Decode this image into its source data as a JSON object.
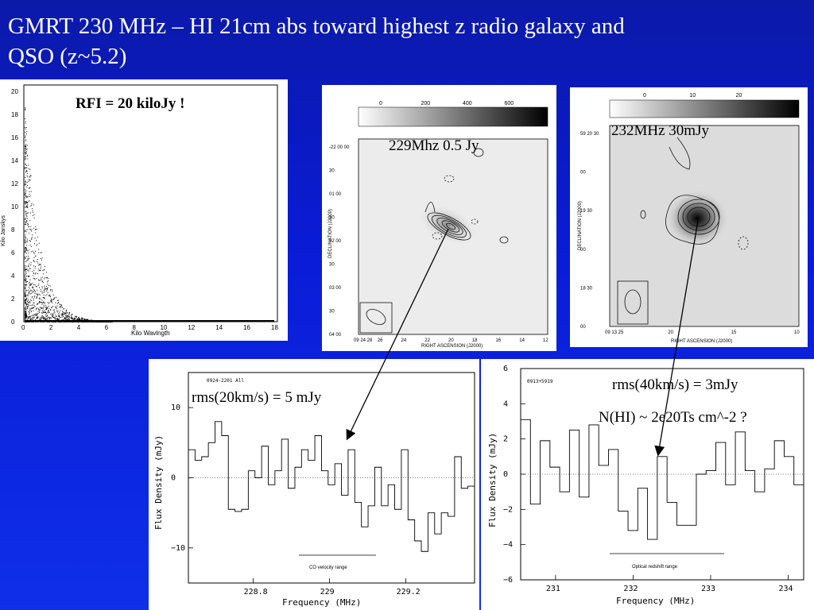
{
  "slide": {
    "title_line1": "GMRT 230 MHz  – HI 21cm abs toward highest z radio galaxy and",
    "title_line2": "QSO (z~5.2)"
  },
  "rfi_panel": {
    "annotation": "RFI = 20 kiloJy !",
    "xlabel": "Kilo Wavlngth",
    "ylabel": "Kilo Janskys",
    "x_ticks": [
      "0",
      "2",
      "4",
      "6",
      "8",
      "10",
      "12",
      "14",
      "16",
      "18"
    ],
    "y_ticks": [
      "0",
      "2",
      "4",
      "6",
      "8",
      "10",
      "12",
      "14",
      "16",
      "18",
      "20"
    ]
  },
  "map_229": {
    "annotation": "229Mhz   0.5 Jy",
    "scale_ticks": [
      "0",
      "200",
      "400",
      "600"
    ],
    "xlabel": "RIGHT ASCENSION (J2000)",
    "ylabel": "DECLINATION (J2000)",
    "x_ticks": [
      "09 24 28",
      "26",
      "24",
      "22",
      "20",
      "18",
      "16",
      "14",
      "12"
    ],
    "y_ticks": [
      "-22 00 00",
      "30",
      "01 00",
      "30",
      "02 00",
      "30",
      "03 00",
      "30",
      "04 00"
    ]
  },
  "map_232": {
    "annotation": "232MHz  30mJy",
    "scale_ticks": [
      "0",
      "10",
      "20"
    ],
    "xlabel": "RIGHT ASCENSION (J2000)",
    "ylabel": "DECLINATION (J2000)",
    "x_ticks": [
      "09 13 25",
      "20",
      "15",
      "10"
    ],
    "y_ticks": [
      "59 20 30",
      "00",
      "19 30",
      "00",
      "18 30",
      "00"
    ]
  },
  "spectrum_left": {
    "source": "0924-2201 All",
    "annotation": "rms(20km/s) = 5 mJy",
    "xlabel": "Frequency (MHz)",
    "ylabel": "Flux Density (mJy)",
    "range_label": "CO velocity range",
    "x_ticks": [
      "228.8",
      "229",
      "229.2"
    ],
    "y_ticks": [
      "10",
      "0",
      "−10"
    ]
  },
  "spectrum_right": {
    "source": "0913+5919",
    "annotation1": "rms(40km/s) = 3mJy",
    "annotation2": "N(HI) ~ 2e20Ts cm^-2 ?",
    "xlabel": "Frequency (MHz)",
    "ylabel": "Flux Density (mJy)",
    "range_label": "Optical redshift range",
    "x_ticks": [
      "231",
      "232",
      "233",
      "234"
    ],
    "y_ticks": [
      "6",
      "4",
      "2",
      "0",
      "−2",
      "−4",
      "−6"
    ]
  },
  "chart_data": [
    {
      "type": "line",
      "name": "spectrum-0924-2201",
      "xlim": [
        228.63,
        229.38
      ],
      "ylim": [
        -15,
        15
      ],
      "steps": [
        4,
        2.5,
        3,
        5,
        8,
        6,
        -4.5,
        -4.8,
        -4.5,
        1,
        0,
        4.5,
        -1,
        1,
        5.5,
        -1.5,
        1.5,
        4,
        2.5,
        6,
        1,
        -1,
        2,
        -2.5,
        4,
        -3.5,
        -7,
        -4,
        1.5,
        -4,
        -1,
        -4.5,
        4,
        -6,
        -9,
        -10.5,
        -5,
        -8,
        -5,
        -5.5,
        3,
        -1.5,
        -1.2
      ]
    },
    {
      "type": "line",
      "name": "spectrum-0913+5919",
      "xlim": [
        230.55,
        234.2
      ],
      "ylim": [
        -6,
        6
      ],
      "steps": [
        3.1,
        -1.7,
        1.9,
        0.4,
        -1,
        2.5,
        -1.3,
        2.8,
        0.5,
        1.4,
        -2.1,
        -3.2,
        -0.8,
        -3.7,
        1,
        -1.6,
        -2.9,
        -2.9,
        0,
        0.2,
        1.8,
        -0.6,
        2.4,
        0.2,
        -1,
        0.3,
        1.9,
        1,
        -0.6
      ]
    }
  ]
}
